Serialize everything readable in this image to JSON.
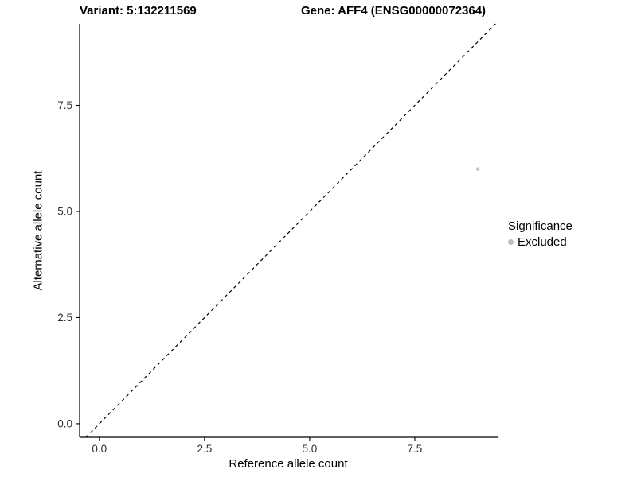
{
  "titles": {
    "variant": "Variant: 5:132211569",
    "gene": "Gene: AFF4 (ENSG00000072364)"
  },
  "chart_data": {
    "type": "scatter",
    "title_left": "Variant: 5:132211569",
    "title_right": "Gene: AFF4 (ENSG00000072364)",
    "xlabel": "Reference allele count",
    "ylabel": "Alternative allele count",
    "xlim": [
      -0.47,
      9.47
    ],
    "ylim": [
      -0.32,
      9.42
    ],
    "xticks": [
      {
        "v": 0.0,
        "label": "0.0"
      },
      {
        "v": 2.5,
        "label": "2.5"
      },
      {
        "v": 5.0,
        "label": "5.0"
      },
      {
        "v": 7.5,
        "label": "7.5"
      }
    ],
    "yticks": [
      {
        "v": 0.0,
        "label": "0.0"
      },
      {
        "v": 2.5,
        "label": "2.5"
      },
      {
        "v": 5.0,
        "label": "5.0"
      },
      {
        "v": 7.5,
        "label": "7.5"
      }
    ],
    "points": [
      {
        "x": 9,
        "y": 6,
        "significance": "Excluded"
      }
    ],
    "identity_line": {
      "slope": 1,
      "intercept": 0,
      "style": "dashed"
    },
    "grid": false,
    "colors": {
      "point": "#bdbdbd",
      "axis": "#000000",
      "tick_label": "#303030",
      "line": "#000000"
    },
    "legend": {
      "position": "right",
      "title": "Significance",
      "entries": [
        {
          "label": "Excluded",
          "color": "#bdbdbd"
        }
      ]
    }
  }
}
